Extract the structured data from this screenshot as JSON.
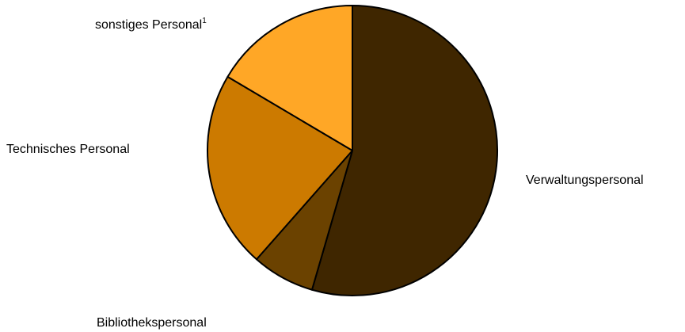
{
  "chart_data": {
    "type": "pie",
    "title": "",
    "start_angle_deg": 0,
    "direction": "clockwise",
    "legend": "none",
    "slices": [
      {
        "label": "Verwaltungspersonal",
        "value": 54.5,
        "color": "#3f2600"
      },
      {
        "label": "Bibliothekspersonal",
        "value": 7.0,
        "color": "#6b4200"
      },
      {
        "label": "Technisches Personal",
        "value": 22.0,
        "color": "#cc7a00"
      },
      {
        "label": "sonstiges Personal",
        "footnote": "1",
        "value": 16.5,
        "color": "#ffa726"
      }
    ]
  }
}
